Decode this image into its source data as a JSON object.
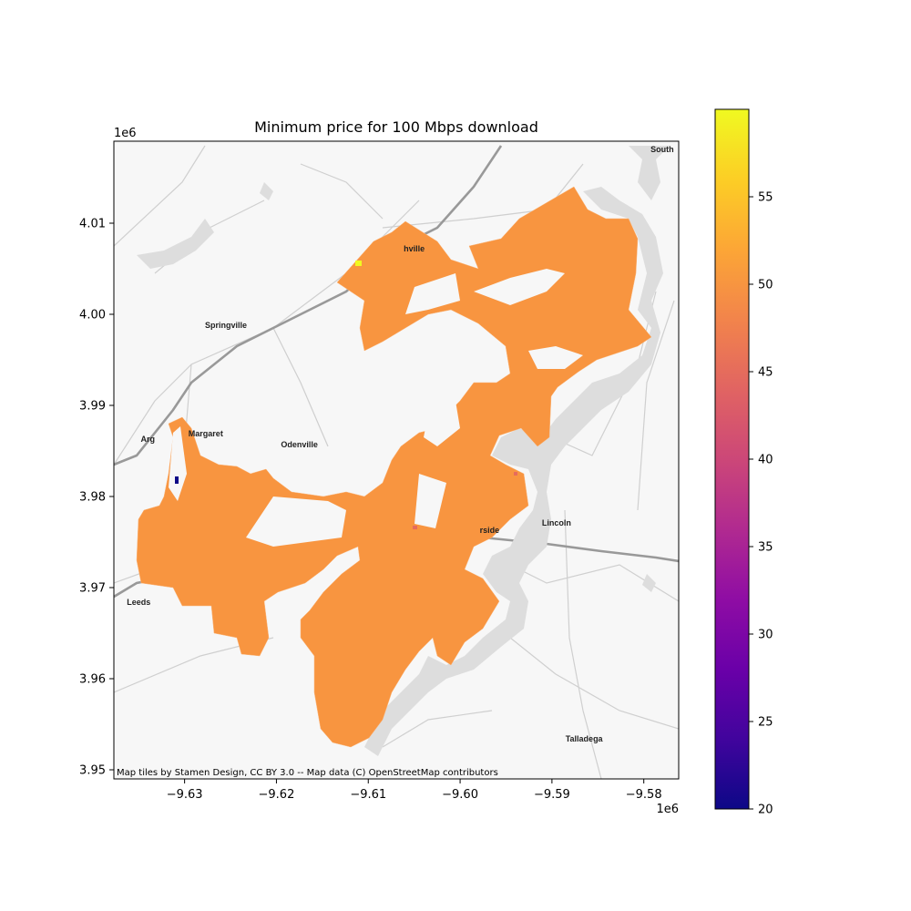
{
  "chart_data": {
    "type": "choropleth map",
    "title": "Minimum price for 100 Mbps download",
    "xlabel": "",
    "ylabel": "",
    "x_offset_label": "1e6",
    "y_offset_label": "1e6",
    "xlim": [
      -9.6377,
      -9.5762
    ],
    "ylim": [
      3.949,
      4.019
    ],
    "x_ticks": [
      {
        "value": -9.63,
        "label": "−9.63"
      },
      {
        "value": -9.62,
        "label": "−9.62"
      },
      {
        "value": -9.61,
        "label": "−9.61"
      },
      {
        "value": -9.6,
        "label": "−9.60"
      },
      {
        "value": -9.59,
        "label": "−9.59"
      },
      {
        "value": -9.58,
        "label": "−9.58"
      }
    ],
    "y_ticks": [
      {
        "value": 3.95,
        "label": "3.95"
      },
      {
        "value": 3.96,
        "label": "3.96"
      },
      {
        "value": 3.97,
        "label": "3.97"
      },
      {
        "value": 3.98,
        "label": "3.98"
      },
      {
        "value": 3.99,
        "label": "3.99"
      },
      {
        "value": 4.0,
        "label": "4.00"
      },
      {
        "value": 4.01,
        "label": "4.01"
      }
    ],
    "colorbar": {
      "colormap": "plasma",
      "min": 20,
      "max": 60,
      "ticks": [
        {
          "value": 20,
          "label": "20"
        },
        {
          "value": 25,
          "label": "25"
        },
        {
          "value": 30,
          "label": "30"
        },
        {
          "value": 35,
          "label": "35"
        },
        {
          "value": 40,
          "label": "40"
        },
        {
          "value": 45,
          "label": "45"
        },
        {
          "value": 50,
          "label": "50"
        },
        {
          "value": 55,
          "label": "55"
        }
      ]
    },
    "dominant_value": 50,
    "dominant_color": "#f89540",
    "highlight_regions": [
      {
        "value": 20,
        "color": "#0d0887"
      },
      {
        "value": 59,
        "color": "#f0f921"
      },
      {
        "value": 47,
        "color": "#e66c5c"
      }
    ],
    "place_labels": [
      {
        "name": "South",
        "x": -9.578,
        "y": 4.0178
      },
      {
        "name": "hville",
        "x": -9.605,
        "y": 4.0069
      },
      {
        "name": "Springville",
        "x": -9.6255,
        "y": 3.9985
      },
      {
        "name": "Margaret",
        "x": -9.6277,
        "y": 3.9866
      },
      {
        "name": "Odenville",
        "x": -9.6175,
        "y": 3.9854
      },
      {
        "name": "Arg",
        "x": -9.634,
        "y": 3.986
      },
      {
        "name": "rside",
        "x": -9.5968,
        "y": 3.976
      },
      {
        "name": "Lincoln",
        "x": -9.5895,
        "y": 3.9768
      },
      {
        "name": "Leeds",
        "x": -9.635,
        "y": 3.9681
      },
      {
        "name": "Talladega",
        "x": -9.5865,
        "y": 3.9531
      }
    ],
    "attribution": "Map tiles by Stamen Design, CC BY 3.0 -- Map data (C) OpenStreetMap contributors"
  }
}
